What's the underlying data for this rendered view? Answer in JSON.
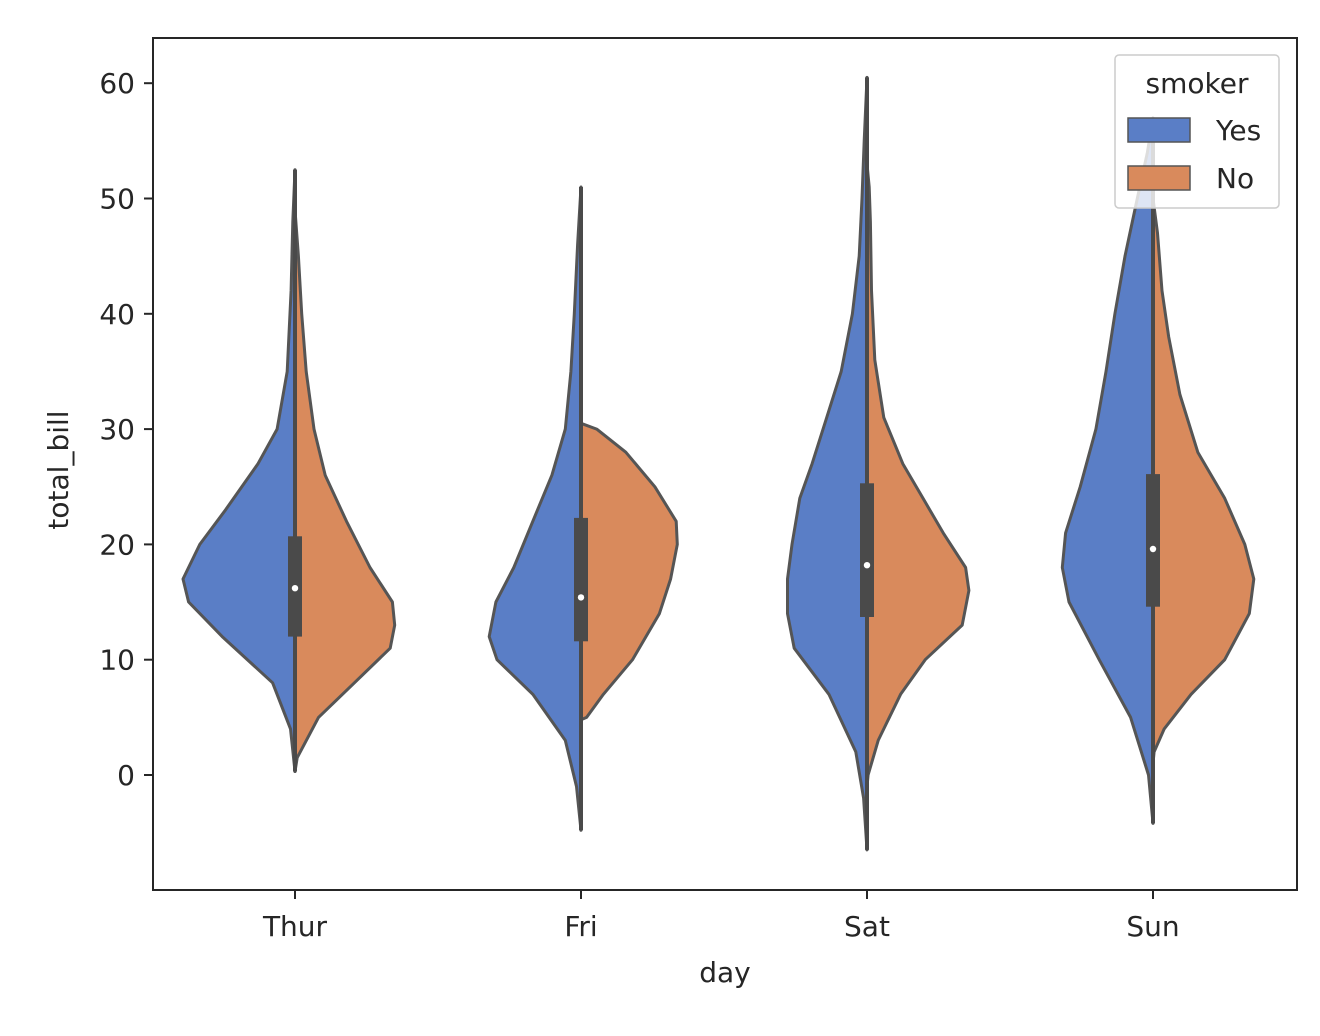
{
  "chart_data": {
    "type": "violin",
    "split": true,
    "xlabel": "day",
    "ylabel": "total_bill",
    "categories": [
      "Thur",
      "Fri",
      "Sat",
      "Sun"
    ],
    "yticks": [
      0,
      10,
      20,
      30,
      40,
      50,
      60
    ],
    "ylim": [
      -10,
      64
    ],
    "grid": false,
    "legend": {
      "title": "smoker",
      "placement": "top-right",
      "entries": [
        {
          "label": "Yes",
          "color": "#5a7ec6"
        },
        {
          "label": "No",
          "color": "#d98a5c"
        }
      ]
    },
    "colors": {
      "Yes": "#5a7ec6",
      "No": "#d98a5c",
      "outline": "#555555",
      "box": "#4a4a4a",
      "median": "#ffffff"
    },
    "series": [
      {
        "name": "Yes",
        "violins": [
          {
            "category": "Thur",
            "profile": [
              [
                0.3,
                0
              ],
              [
                4,
                0.04
              ],
              [
                8,
                0.2
              ],
              [
                12,
                0.65
              ],
              [
                15,
                0.95
              ],
              [
                17,
                1
              ],
              [
                20,
                0.85
              ],
              [
                23,
                0.62
              ],
              [
                27,
                0.33
              ],
              [
                30,
                0.16
              ],
              [
                35,
                0.07
              ],
              [
                42,
                0.035
              ],
              [
                48,
                0.02
              ],
              [
                52.5,
                0
              ]
            ]
          },
          {
            "category": "Fri",
            "profile": [
              [
                -4.8,
                0
              ],
              [
                -1,
                0.04
              ],
              [
                3,
                0.14
              ],
              [
                7,
                0.43
              ],
              [
                10,
                0.75
              ],
              [
                12,
                0.82
              ],
              [
                15,
                0.76
              ],
              [
                18,
                0.6
              ],
              [
                22,
                0.43
              ],
              [
                26,
                0.26
              ],
              [
                30,
                0.14
              ],
              [
                35,
                0.09
              ],
              [
                40,
                0.06
              ],
              [
                46,
                0.03
              ],
              [
                51,
                0
              ]
            ]
          },
          {
            "category": "Sat",
            "profile": [
              [
                -6.5,
                0
              ],
              [
                -2,
                0.03
              ],
              [
                2,
                0.1
              ],
              [
                7,
                0.34
              ],
              [
                11,
                0.65
              ],
              [
                14,
                0.71
              ],
              [
                17,
                0.71
              ],
              [
                20,
                0.67
              ],
              [
                24,
                0.6
              ],
              [
                27,
                0.49
              ],
              [
                31,
                0.36
              ],
              [
                35,
                0.23
              ],
              [
                40,
                0.13
              ],
              [
                45,
                0.07
              ],
              [
                50,
                0.045
              ],
              [
                55,
                0.025
              ],
              [
                60.5,
                0
              ]
            ]
          },
          {
            "category": "Sun",
            "profile": [
              [
                -4.2,
                0
              ],
              [
                0,
                0.04
              ],
              [
                5,
                0.2
              ],
              [
                10,
                0.48
              ],
              [
                15,
                0.75
              ],
              [
                18,
                0.81
              ],
              [
                21,
                0.78
              ],
              [
                25,
                0.65
              ],
              [
                30,
                0.51
              ],
              [
                35,
                0.42
              ],
              [
                40,
                0.34
              ],
              [
                45,
                0.25
              ],
              [
                50,
                0.14
              ],
              [
                54,
                0.05
              ],
              [
                57,
                0
              ]
            ]
          }
        ]
      },
      {
        "name": "No",
        "violins": [
          {
            "category": "Thur",
            "profile": [
              [
                0.3,
                0
              ],
              [
                1.5,
                0.02
              ],
              [
                5,
                0.21
              ],
              [
                8,
                0.53
              ],
              [
                11,
                0.85
              ],
              [
                13,
                0.89
              ],
              [
                15,
                0.87
              ],
              [
                18,
                0.67
              ],
              [
                22,
                0.46
              ],
              [
                26,
                0.27
              ],
              [
                30,
                0.17
              ],
              [
                35,
                0.1
              ],
              [
                40,
                0.06
              ],
              [
                45,
                0.03
              ],
              [
                49,
                0
              ]
            ]
          },
          {
            "category": "Fri",
            "profile": [
              [
                4.8,
                0
              ],
              [
                5,
                0.05
              ],
              [
                7,
                0.2
              ],
              [
                10,
                0.46
              ],
              [
                14,
                0.7
              ],
              [
                17,
                0.8
              ],
              [
                20,
                0.86
              ],
              [
                22,
                0.85
              ],
              [
                25,
                0.66
              ],
              [
                28,
                0.4
              ],
              [
                30,
                0.14
              ],
              [
                30.5,
                0
              ]
            ]
          },
          {
            "category": "Sat",
            "profile": [
              [
                -1,
                0
              ],
              [
                0,
                0.01
              ],
              [
                3,
                0.1
              ],
              [
                7,
                0.3
              ],
              [
                10,
                0.52
              ],
              [
                13,
                0.85
              ],
              [
                16,
                0.91
              ],
              [
                18,
                0.88
              ],
              [
                21,
                0.68
              ],
              [
                24,
                0.5
              ],
              [
                27,
                0.32
              ],
              [
                31,
                0.15
              ],
              [
                36,
                0.07
              ],
              [
                42,
                0.04
              ],
              [
                48,
                0.03
              ],
              [
                51,
                0.02
              ],
              [
                53,
                0
              ]
            ]
          },
          {
            "category": "Sun",
            "profile": [
              [
                1,
                0
              ],
              [
                2,
                0.01
              ],
              [
                4,
                0.1
              ],
              [
                7,
                0.34
              ],
              [
                10,
                0.64
              ],
              [
                14,
                0.86
              ],
              [
                17,
                0.9
              ],
              [
                20,
                0.82
              ],
              [
                24,
                0.64
              ],
              [
                28,
                0.4
              ],
              [
                33,
                0.24
              ],
              [
                38,
                0.14
              ],
              [
                42,
                0.08
              ],
              [
                47,
                0.04
              ],
              [
                50,
                0
              ]
            ]
          }
        ]
      }
    ],
    "boxes": [
      {
        "category": "Thur",
        "q1": 12.0,
        "median": 16.2,
        "q3": 20.7
      },
      {
        "category": "Fri",
        "q1": 11.6,
        "median": 15.4,
        "q3": 22.3
      },
      {
        "category": "Sat",
        "q1": 13.7,
        "median": 18.2,
        "q3": 25.3
      },
      {
        "category": "Sun",
        "q1": 14.6,
        "median": 19.6,
        "q3": 26.1
      }
    ]
  }
}
